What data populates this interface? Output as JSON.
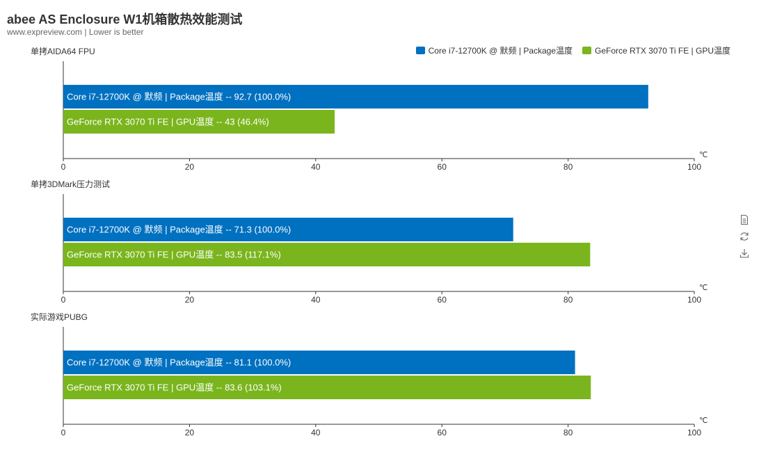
{
  "title": "abee AS Enclosure W1机箱散热效能测试",
  "subtitle": "www.expreview.com | Lower is better",
  "legend": {
    "items": [
      {
        "label": "Core i7-12700K @ 默频 | Package温度",
        "color": "#0070c0"
      },
      {
        "label": "GeForce RTX 3070 Ti FE | GPU温度",
        "color": "#7ab51d"
      }
    ]
  },
  "toolbox": [
    "data-view-icon",
    "restore-icon",
    "save-image-icon"
  ],
  "chart_data": [
    {
      "type": "bar",
      "orientation": "horizontal",
      "title": "单拷AIDA64 FPU",
      "unit": "℃",
      "xlim": [
        0,
        100
      ],
      "ticks": [
        "0",
        "20",
        "40",
        "60",
        "80",
        "100"
      ],
      "series": [
        {
          "name": "Core i7-12700K @ 默频 | Package温度",
          "value": 92.7,
          "label": "Core i7-12700K @ 默频 | Package温度  --  92.7 (100.0%)",
          "color": "#0070c0"
        },
        {
          "name": "GeForce RTX 3070 Ti FE | GPU温度",
          "value": 43,
          "label": "GeForce RTX 3070 Ti FE | GPU温度  --  43 (46.4%)",
          "color": "#7ab51d"
        }
      ]
    },
    {
      "type": "bar",
      "orientation": "horizontal",
      "title": "单拷3DMark压力测试",
      "unit": "℃",
      "xlim": [
        0,
        100
      ],
      "ticks": [
        "0",
        "20",
        "40",
        "60",
        "80",
        "100"
      ],
      "series": [
        {
          "name": "Core i7-12700K @ 默频 | Package温度",
          "value": 71.3,
          "label": "Core i7-12700K @ 默频 | Package温度  --  71.3 (100.0%)",
          "color": "#0070c0"
        },
        {
          "name": "GeForce RTX 3070 Ti FE | GPU温度",
          "value": 83.5,
          "label": "GeForce RTX 3070 Ti FE | GPU温度  --  83.5 (117.1%)",
          "color": "#7ab51d"
        }
      ]
    },
    {
      "type": "bar",
      "orientation": "horizontal",
      "title": "实际游戏PUBG",
      "unit": "℃",
      "xlim": [
        0,
        100
      ],
      "ticks": [
        "0",
        "20",
        "40",
        "60",
        "80",
        "100"
      ],
      "series": [
        {
          "name": "Core i7-12700K @ 默频 | Package温度",
          "value": 81.1,
          "label": "Core i7-12700K @ 默频 | Package温度  --  81.1 (100.0%)",
          "color": "#0070c0"
        },
        {
          "name": "GeForce RTX 3070 Ti FE | GPU温度",
          "value": 83.6,
          "label": "GeForce RTX 3070 Ti FE | GPU温度  --  83.6 (103.1%)",
          "color": "#7ab51d"
        }
      ]
    }
  ]
}
